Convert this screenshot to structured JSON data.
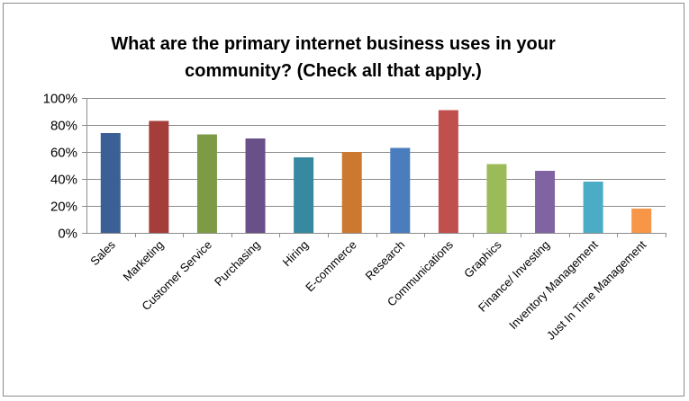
{
  "chart_data": {
    "type": "bar",
    "title_lines": [
      "What are the primary internet business uses in your",
      "community? (Check all that apply.)"
    ],
    "categories": [
      "Sales",
      "Marketing",
      "Customer Service",
      "Purchasing",
      "Hiring",
      "E-commerce",
      "Research",
      "Communications",
      "Graphics",
      "Finance/ Investing",
      "Inventory Management",
      "Just In Time Management"
    ],
    "values": [
      0.74,
      0.83,
      0.73,
      0.7,
      0.56,
      0.6,
      0.63,
      0.91,
      0.51,
      0.46,
      0.38,
      0.18
    ],
    "colors": [
      "#3b6096",
      "#a53e3b",
      "#7d9a44",
      "#6a5089",
      "#36899e",
      "#cd7830",
      "#4a7dbd",
      "#c0504d",
      "#9bbb59",
      "#8064a2",
      "#4bacc6",
      "#f79646"
    ],
    "ylim": [
      0,
      1
    ],
    "yticks": [
      0,
      0.2,
      0.4,
      0.6,
      0.8,
      1.0
    ],
    "ytick_labels": [
      "0%",
      "20%",
      "40%",
      "60%",
      "80%",
      "100%"
    ],
    "xlabel": "",
    "ylabel": "",
    "grid": true,
    "gridline_color": "#8c8c8c"
  }
}
